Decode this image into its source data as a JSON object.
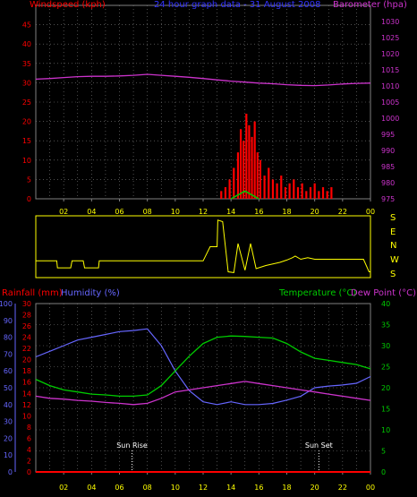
{
  "chart_data": [
    {
      "type": "line",
      "title": "24 hour graph data - 31 August 2008",
      "left_axis_label": "Windspeed (kph)",
      "right_axis_label": "Barometer (hpa)",
      "x_tick_labels": [
        "02",
        "04",
        "06",
        "08",
        "10",
        "12",
        "14",
        "16",
        "18",
        "20",
        "22",
        "00"
      ],
      "windspeed_ylim": [
        0,
        50
      ],
      "windspeed_ticks": [
        0,
        5,
        10,
        15,
        20,
        25,
        30,
        35,
        40,
        45,
        50
      ],
      "barometer_ylim": [
        975,
        1035
      ],
      "barometer_ticks": [
        975,
        980,
        985,
        990,
        995,
        1000,
        1005,
        1010,
        1015,
        1020,
        1025,
        1030,
        1035
      ],
      "grid": true,
      "colors": {
        "windspeed": "#ff0000",
        "gust": "#ff0000",
        "barometer": "#cc33cc",
        "windspeed_avg": "#00cc00",
        "axis_left": "#ff0000",
        "axis_right": "#cc33cc",
        "title": "#3333ff"
      },
      "series": [
        {
          "key": "barometer",
          "x": [
            0,
            1,
            2,
            3,
            4,
            5,
            6,
            7,
            8,
            9,
            10,
            11,
            12,
            13,
            14,
            15,
            16,
            17,
            18,
            19,
            20,
            21,
            22,
            23,
            24
          ],
          "y": [
            1012.1,
            1012.3,
            1012.6,
            1012.9,
            1013.0,
            1013.0,
            1013.1,
            1013.3,
            1013.6,
            1013.3,
            1013.0,
            1012.7,
            1012.3,
            1011.9,
            1011.5,
            1011.2,
            1010.9,
            1010.7,
            1010.4,
            1010.2,
            1010.1,
            1010.3,
            1010.6,
            1010.8,
            1010.9
          ]
        },
        {
          "key": "windspeed_gust",
          "x": [
            13.0,
            13.3,
            13.6,
            13.9,
            14.2,
            14.5,
            14.7,
            14.9,
            15.1,
            15.3,
            15.5,
            15.7,
            15.9,
            16.1,
            16.4,
            16.7,
            17.0,
            17.3,
            17.6,
            17.9,
            18.2,
            18.5,
            18.8,
            19.1,
            19.4,
            19.7,
            20.0,
            20.3,
            20.6,
            20.9,
            21.2,
            21.5
          ],
          "y": [
            0,
            2,
            3,
            5,
            8,
            12,
            18,
            15,
            22,
            19,
            16,
            20,
            12,
            10,
            6,
            8,
            5,
            4,
            6,
            3,
            4,
            5,
            3,
            4,
            2,
            3,
            4,
            2,
            3,
            2,
            3,
            0
          ]
        },
        {
          "key": "windspeed_avg",
          "x": [
            14.0,
            14.5,
            15.0,
            15.5,
            16.0
          ],
          "y": [
            0,
            1,
            2,
            1,
            0
          ]
        }
      ]
    },
    {
      "type": "line",
      "title": "Wind direction",
      "direction_labels": [
        "S",
        "E",
        "N",
        "W",
        "S"
      ],
      "x_tick_labels": [
        "02",
        "04",
        "06",
        "08",
        "10",
        "12",
        "14",
        "16",
        "18",
        "20",
        "22",
        "00"
      ],
      "colors": {
        "direction": "#ffff00",
        "labels": "#ffff00",
        "frame": "#ffff00"
      },
      "series": [
        {
          "key": "direction_deg",
          "x": [
            0,
            1.5,
            1.55,
            2.5,
            2.6,
            3.4,
            3.5,
            4.5,
            4.55,
            5.7,
            5.8,
            8.0,
            9.0,
            10.0,
            11.0,
            12.0,
            12.5,
            13.0,
            13.05,
            13.4,
            13.8,
            14.2,
            14.5,
            15.0,
            15.4,
            15.8,
            16.5,
            17.0,
            17.5,
            18.0,
            18.4,
            18.6,
            19.0,
            19.5,
            20.0,
            21.0,
            22.0,
            23.5,
            23.9,
            24
          ],
          "y": [
            90,
            90,
            45,
            45,
            90,
            90,
            45,
            45,
            90,
            90,
            90,
            90,
            90,
            90,
            90,
            90,
            180,
            180,
            350,
            340,
            20,
            15,
            200,
            30,
            200,
            40,
            60,
            70,
            80,
            95,
            110,
            120,
            100,
            110,
            100,
            100,
            100,
            100,
            20,
            20
          ]
        }
      ]
    },
    {
      "type": "line",
      "axis_label_rainfall": "Rainfall (mm)",
      "axis_label_humidity": "Humidity (%)",
      "axis_label_temperature": "Temperature (°C)",
      "axis_label_dewpoint": "Dew Point (°C)",
      "x_tick_labels": [
        "02",
        "04",
        "06",
        "08",
        "10",
        "12",
        "14",
        "16",
        "18",
        "20",
        "22",
        "00"
      ],
      "rainfall_ylim": [
        0,
        100
      ],
      "rainfall_ticks": [
        0,
        10,
        20,
        30,
        40,
        50,
        60,
        70,
        80,
        90,
        100
      ],
      "humidity_ylim": [
        0,
        30
      ],
      "humidity_ticks": [
        0,
        2,
        4,
        6,
        8,
        10,
        12,
        14,
        16,
        18,
        20,
        22,
        24,
        26,
        28,
        30
      ],
      "temperature_ylim": [
        0,
        40
      ],
      "temperature_ticks": [
        0,
        5,
        10,
        15,
        20,
        25,
        30,
        35,
        40
      ],
      "annotations": [
        {
          "label": "Sun Rise",
          "x": 6.9
        },
        {
          "label": "Sun Set",
          "x": 20.3
        }
      ],
      "grid": true,
      "colors": {
        "rainfall": "#ff0000",
        "humidity": "#6666ff",
        "temperature": "#00cc00",
        "dewpoint": "#cc33cc",
        "humidity_axis": "#6666ff",
        "rainfall_axis": "#ff0000",
        "temp_axis": "#00cc00"
      },
      "series": [
        {
          "key": "humidity",
          "x": [
            0,
            1,
            2,
            3,
            4,
            5,
            6,
            7,
            8,
            9,
            10,
            11,
            12,
            13,
            14,
            15,
            16,
            17,
            18,
            19,
            20,
            21,
            22,
            23,
            24
          ],
          "y": [
            20.5,
            21.5,
            22.5,
            23.5,
            24.0,
            24.5,
            25.0,
            25.2,
            25.5,
            22.5,
            18.0,
            14.5,
            12.5,
            12.0,
            12.5,
            12.0,
            12.0,
            12.2,
            12.8,
            13.5,
            15.0,
            15.3,
            15.5,
            15.8,
            17.0
          ]
        },
        {
          "key": "temperature",
          "x": [
            0,
            1,
            2,
            3,
            4,
            5,
            6,
            7,
            8,
            9,
            10,
            11,
            12,
            13,
            14,
            15,
            16,
            17,
            18,
            19,
            20,
            21,
            22,
            23,
            24
          ],
          "y": [
            22.0,
            20.5,
            19.5,
            19.0,
            18.5,
            18.3,
            18.0,
            18.0,
            18.3,
            20.5,
            24.0,
            27.5,
            30.5,
            32.0,
            32.3,
            32.2,
            32.0,
            31.8,
            30.5,
            28.5,
            27.0,
            26.5,
            26.0,
            25.5,
            24.5
          ]
        },
        {
          "key": "dewpoint",
          "x": [
            0,
            1,
            2,
            3,
            4,
            5,
            6,
            7,
            8,
            9,
            10,
            11,
            12,
            13,
            14,
            15,
            16,
            17,
            18,
            19,
            20,
            21,
            22,
            23,
            24
          ],
          "y": [
            18.0,
            17.5,
            17.3,
            17.0,
            16.8,
            16.5,
            16.3,
            16.0,
            16.3,
            17.5,
            19.0,
            19.5,
            20.0,
            20.5,
            21.0,
            21.5,
            21.0,
            20.5,
            20.0,
            19.5,
            19.0,
            18.5,
            18.0,
            17.5,
            17.0
          ]
        },
        {
          "key": "rainfall",
          "x": [
            0,
            24
          ],
          "y": [
            0,
            0
          ]
        }
      ]
    }
  ]
}
